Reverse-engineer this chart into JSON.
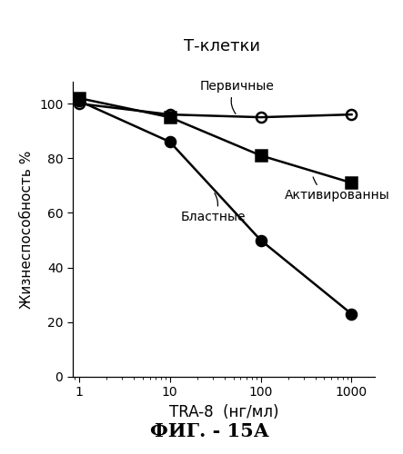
{
  "title": "Т-клетки",
  "xlabel": "TRA-8  (нг/мл)",
  "ylabel": "Жизнеспособность %",
  "caption": "ФИГ. - 15А",
  "x_values": [
    1,
    10,
    100,
    1000
  ],
  "series": [
    {
      "label": "Первичные",
      "y": [
        100,
        96,
        95,
        96
      ],
      "marker": "o",
      "fillstyle": "none",
      "color": "#000000",
      "linewidth": 1.8,
      "markersize": 8
    },
    {
      "label": "Активированны",
      "y": [
        102,
        95,
        81,
        71
      ],
      "marker": "s",
      "fillstyle": "full",
      "color": "#000000",
      "linewidth": 1.8,
      "markersize": 8
    },
    {
      "label": "Бластные",
      "y": [
        101,
        86,
        50,
        23
      ],
      "marker": "o",
      "fillstyle": "full",
      "color": "#000000",
      "linewidth": 1.8,
      "markersize": 8
    }
  ],
  "ylim": [
    0,
    108
  ],
  "yticks": [
    0,
    20,
    40,
    60,
    80,
    100
  ],
  "background_color": "#ffffff",
  "fig_width": 4.43,
  "fig_height": 5.0
}
